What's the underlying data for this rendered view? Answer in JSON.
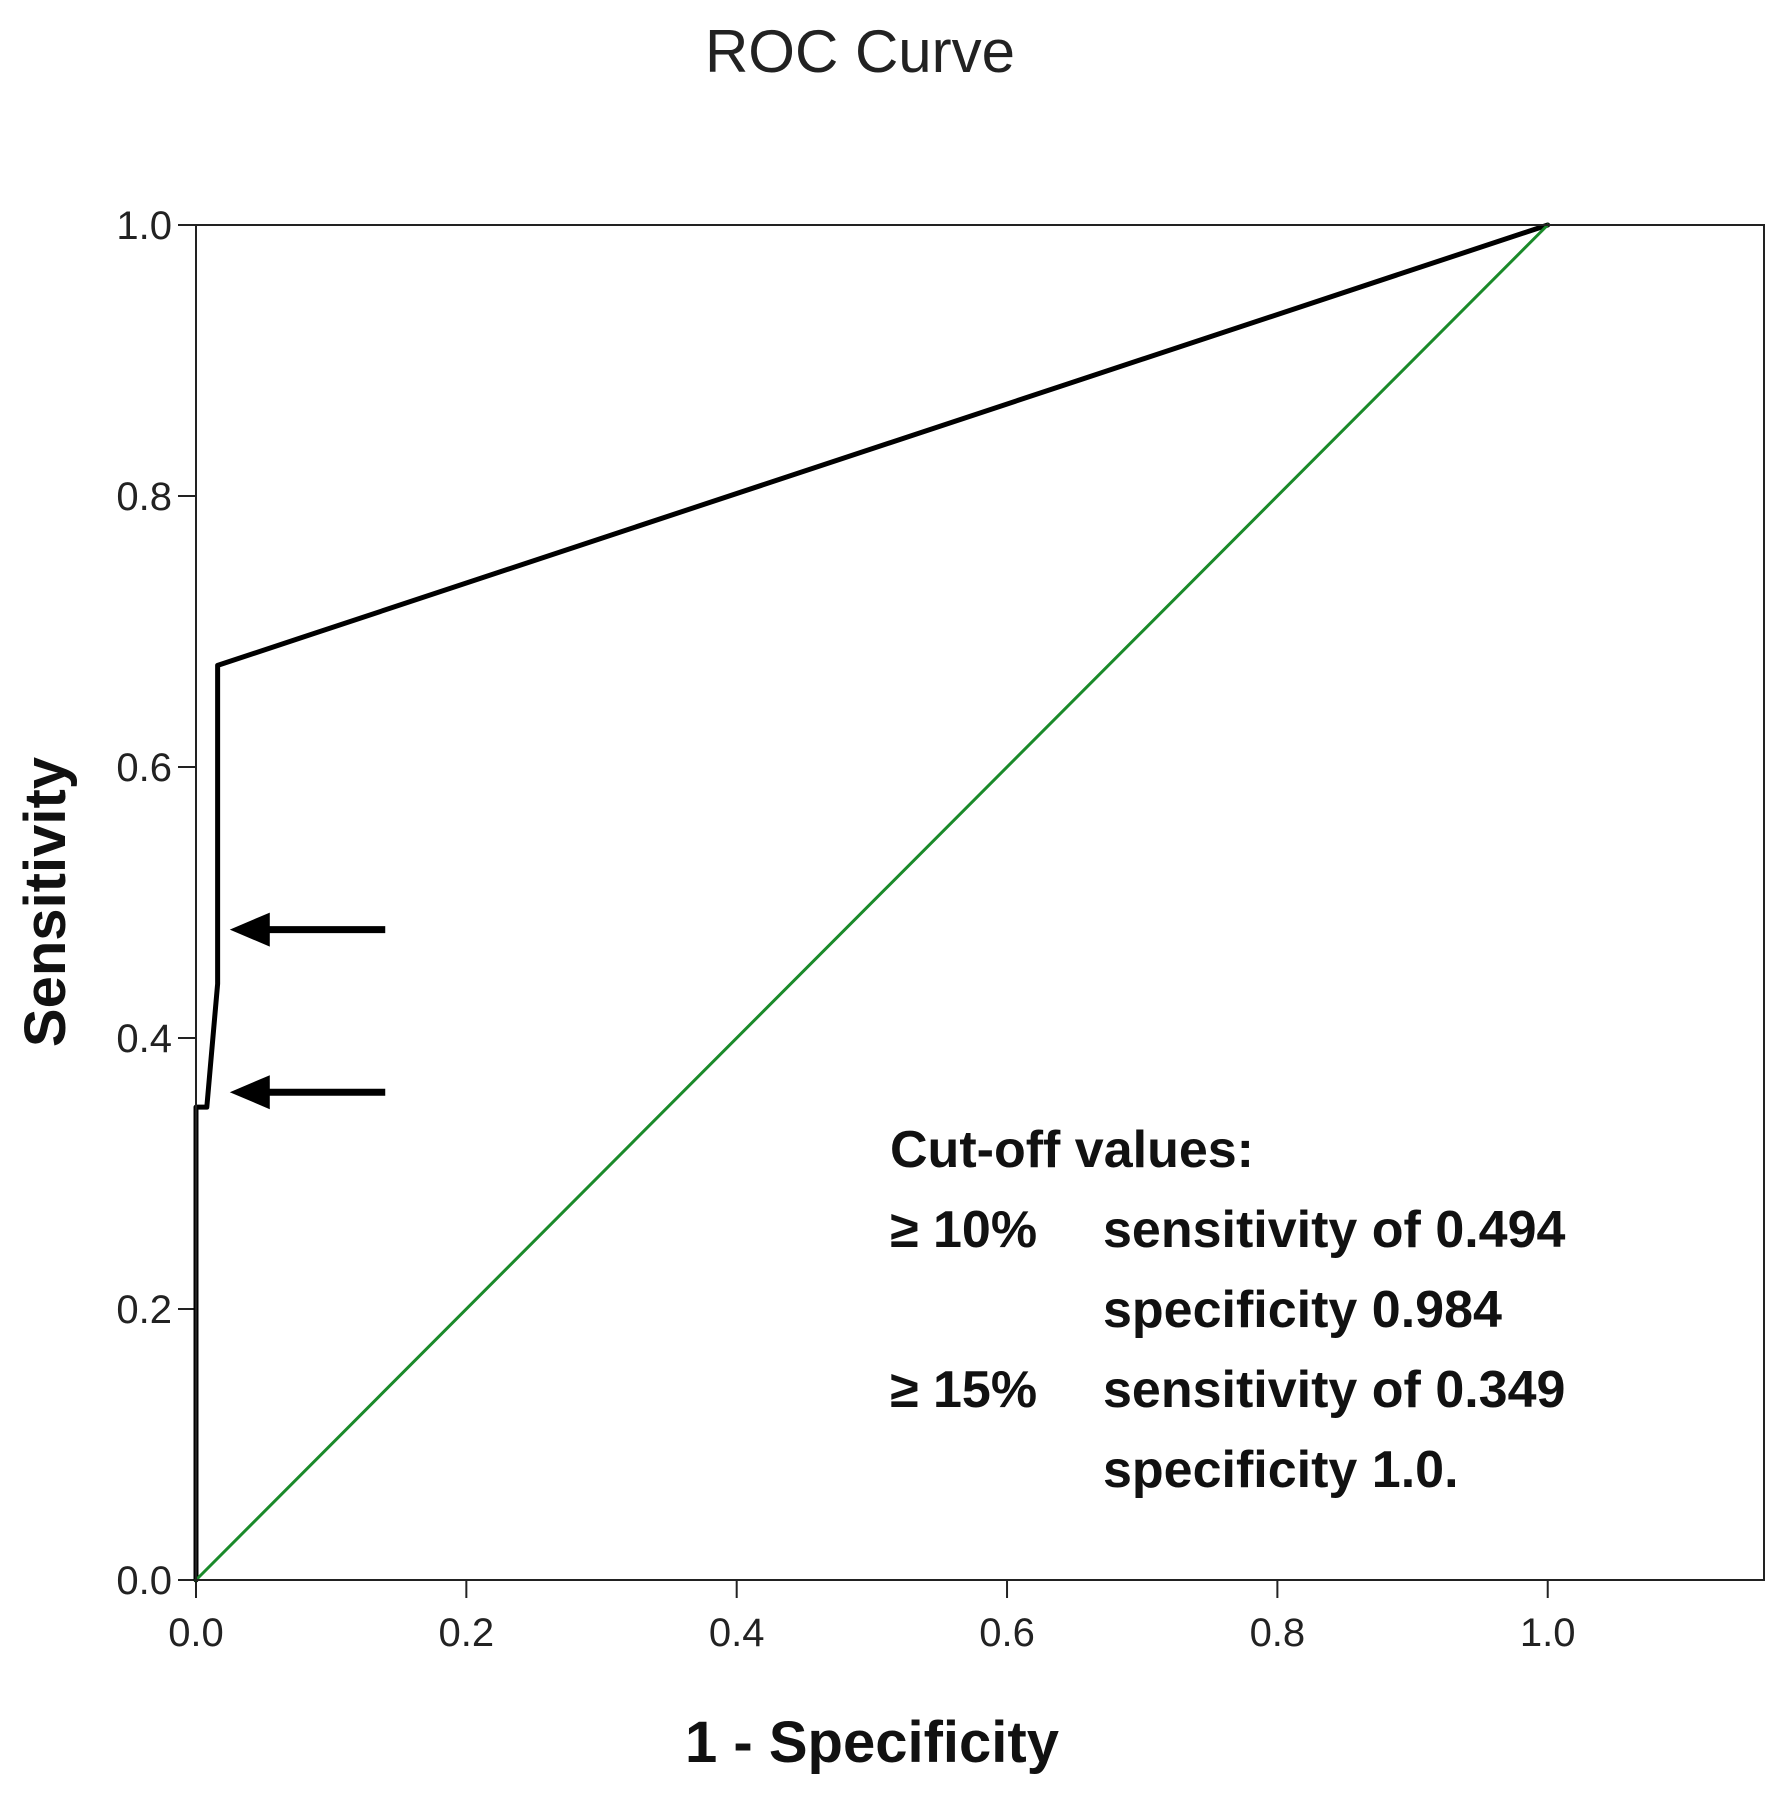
{
  "chart_data": {
    "type": "line",
    "title": "ROC Curve",
    "xlabel": "1 - Specificity",
    "ylabel": "Sensitivity",
    "xlim": [
      0,
      1.16
    ],
    "ylim": [
      0,
      1.0
    ],
    "xticks": [
      0.0,
      0.2,
      0.4,
      0.6,
      0.8,
      1.0
    ],
    "yticks": [
      0.0,
      0.2,
      0.4,
      0.6,
      0.8,
      1.0
    ],
    "xtick_labels": [
      "0.0",
      "0.2",
      "0.4",
      "0.6",
      "0.8",
      "1.0"
    ],
    "ytick_labels": [
      "0.0",
      "0.2",
      "0.4",
      "0.6",
      "0.8",
      "1.0"
    ],
    "grid": false,
    "series": [
      {
        "name": "ROC curve",
        "color": "#000000",
        "x": [
          0.0,
          0.0,
          0.0,
          0.008,
          0.016,
          0.016,
          1.0
        ],
        "y": [
          0.0,
          0.349,
          0.349,
          0.349,
          0.44,
          0.675,
          1.0
        ]
      },
      {
        "name": "Reference line",
        "color": "#1a8a2a",
        "x": [
          0.0,
          1.0
        ],
        "y": [
          0.0,
          1.0
        ]
      }
    ],
    "arrows": [
      {
        "name": "arrow-sensitivity-0.494",
        "y": 0.48,
        "x_start": 0.14,
        "x_end": 0.025
      },
      {
        "name": "arrow-sensitivity-0.349",
        "y": 0.36,
        "x_start": 0.14,
        "x_end": 0.025
      }
    ],
    "annotation": {
      "heading": "Cut-off values:",
      "rows": [
        {
          "threshold": "≥ 10%",
          "line1": "sensitivity of 0.494",
          "line2": "specificity 0.984"
        },
        {
          "threshold": "≥ 15%",
          "line1": "sensitivity of 0.349",
          "line2": "specificity 1.0."
        }
      ]
    }
  }
}
